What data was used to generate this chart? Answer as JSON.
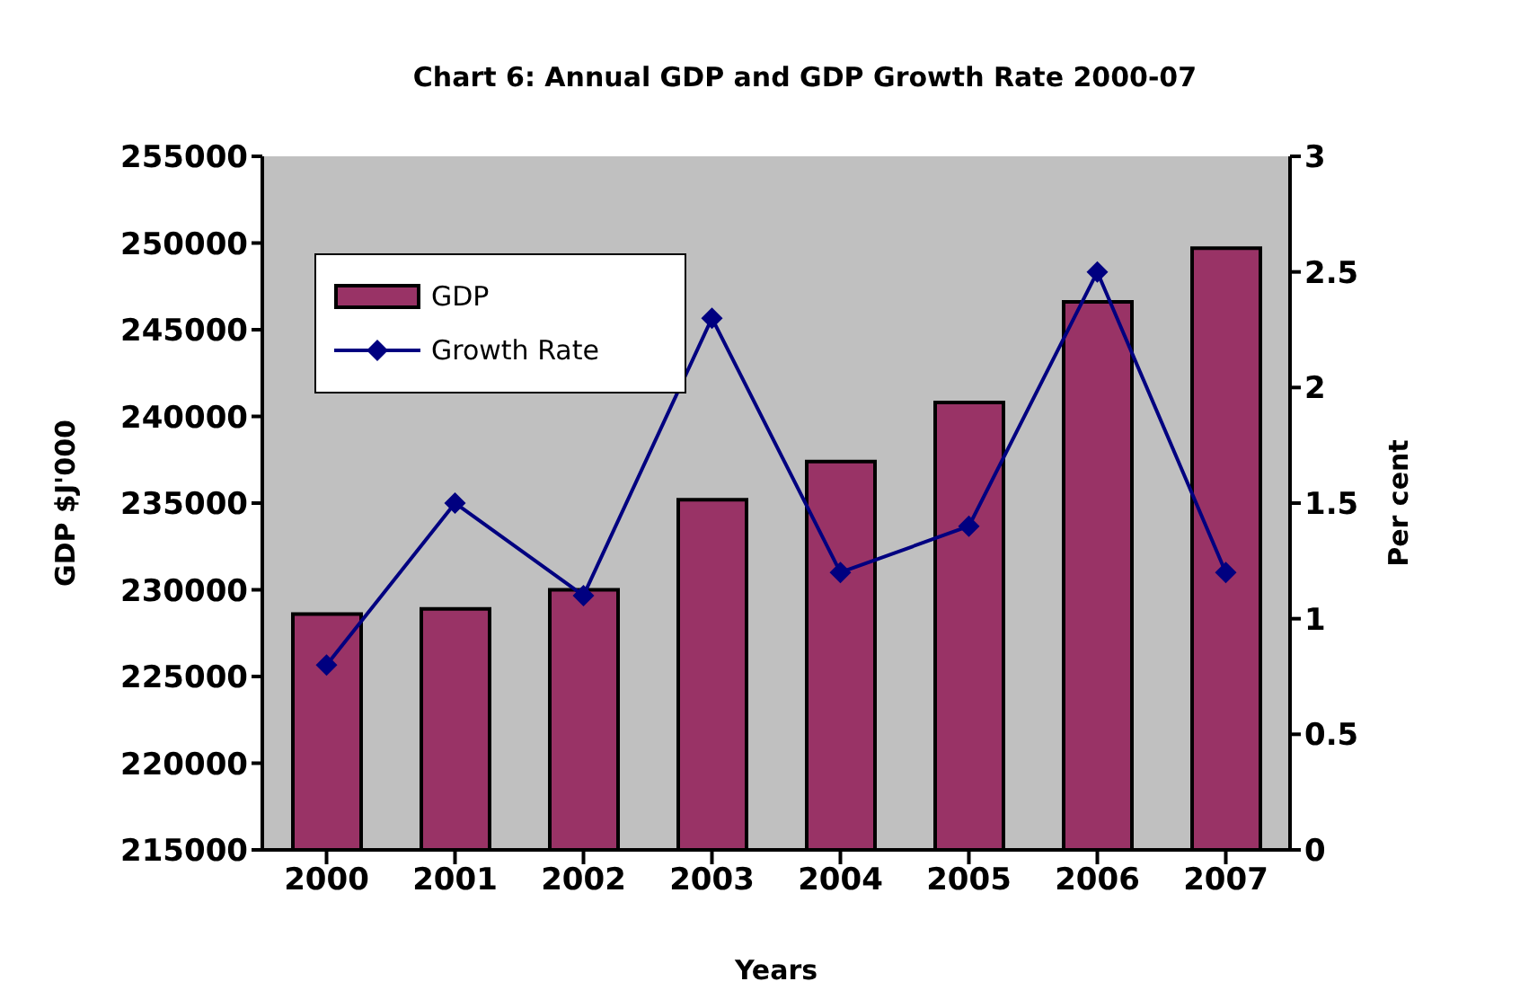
{
  "chart_data": {
    "type": "bar",
    "title": "Chart 6: Annual GDP and GDP Growth Rate 2000-07",
    "xlabel": "Years",
    "ylabel": "GDP $J'000",
    "y2label": "Per cent",
    "categories": [
      "2000",
      "2001",
      "2002",
      "2003",
      "2004",
      "2005",
      "2006",
      "2007"
    ],
    "series": [
      {
        "name": "GDP",
        "color": "#993366",
        "values": [
          228600,
          228900,
          230000,
          235200,
          237400,
          240800,
          246600,
          249700
        ]
      },
      {
        "name": "Growth Rate",
        "type": "line",
        "axis": "y2",
        "color": "#000080",
        "marker": "diamond",
        "values": [
          0.8,
          1.5,
          1.1,
          2.3,
          1.2,
          1.4,
          2.5,
          1.2
        ]
      }
    ],
    "ylim": [
      215000,
      255000
    ],
    "yticks": [
      215000,
      220000,
      225000,
      230000,
      235000,
      240000,
      245000,
      250000,
      255000
    ],
    "y2lim": [
      0,
      3
    ],
    "y2ticks": [
      0,
      0.5,
      1,
      1.5,
      2,
      2.5,
      3
    ],
    "legend": "top left",
    "grid": false
  }
}
